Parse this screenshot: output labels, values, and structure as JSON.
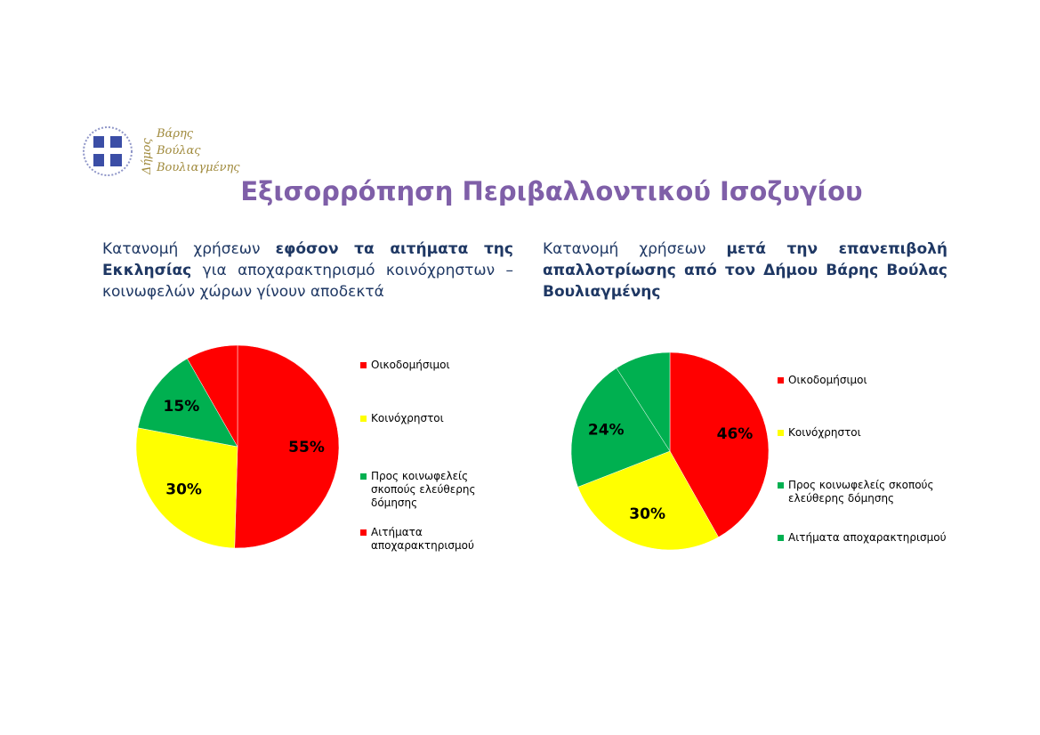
{
  "header": {
    "logo": {
      "vertical": "Δήμος",
      "lines": [
        "Βάρης",
        "Βούλας",
        "Βουλιαγμένης"
      ]
    },
    "title": "Εξισορρόπηση Περιβαλλοντικού Ισοζυγίου"
  },
  "chart_data": [
    {
      "type": "pie",
      "subtitle": [
        {
          "text": "Κατανομή χρήσεων ",
          "bold": false
        },
        {
          "text": "εφόσον τα αιτήματα της Εκκλησίας",
          "bold": true
        },
        {
          "text": " για αποχαρακτηρισμό κοινόχρηστων – κοινωφελών χώρων γίνουν αποδεκτά",
          "bold": false
        }
      ],
      "categories": [
        "Οικοδομήσιμοι",
        "Κοινόχρηστοι",
        "Προς κοινωφελείς σκοπούς ελεύθερης δόμησης",
        "Αιτήματα αποχαρακτηρισμού"
      ],
      "values": [
        55,
        30,
        15,
        9
      ],
      "value_labels": [
        "55%",
        "30%",
        "15%",
        null
      ],
      "colors": [
        "#ff0000",
        "#ffff00",
        "#00b050",
        "#ff0000"
      ]
    },
    {
      "type": "pie",
      "subtitle": [
        {
          "text": "Κατανομή χρήσεων ",
          "bold": false
        },
        {
          "text": "μετά την επανεπιβολή απαλλοτρίωσης από τον Δήμου Βάρης Βούλας Βουλιαγμένης",
          "bold": true
        }
      ],
      "categories": [
        "Οικοδομήσιμοι",
        "Κοινόχρηστοι",
        "Προς κοινωφελείς σκοπούς ελεύθερης δόμησης",
        "Αιτήματα αποχαρακτηρισμού"
      ],
      "values": [
        46,
        30,
        24,
        10
      ],
      "value_labels": [
        "46%",
        "30%",
        "24%",
        null
      ],
      "colors": [
        "#ff0000",
        "#ffff00",
        "#00b050",
        "#00b050"
      ]
    }
  ]
}
